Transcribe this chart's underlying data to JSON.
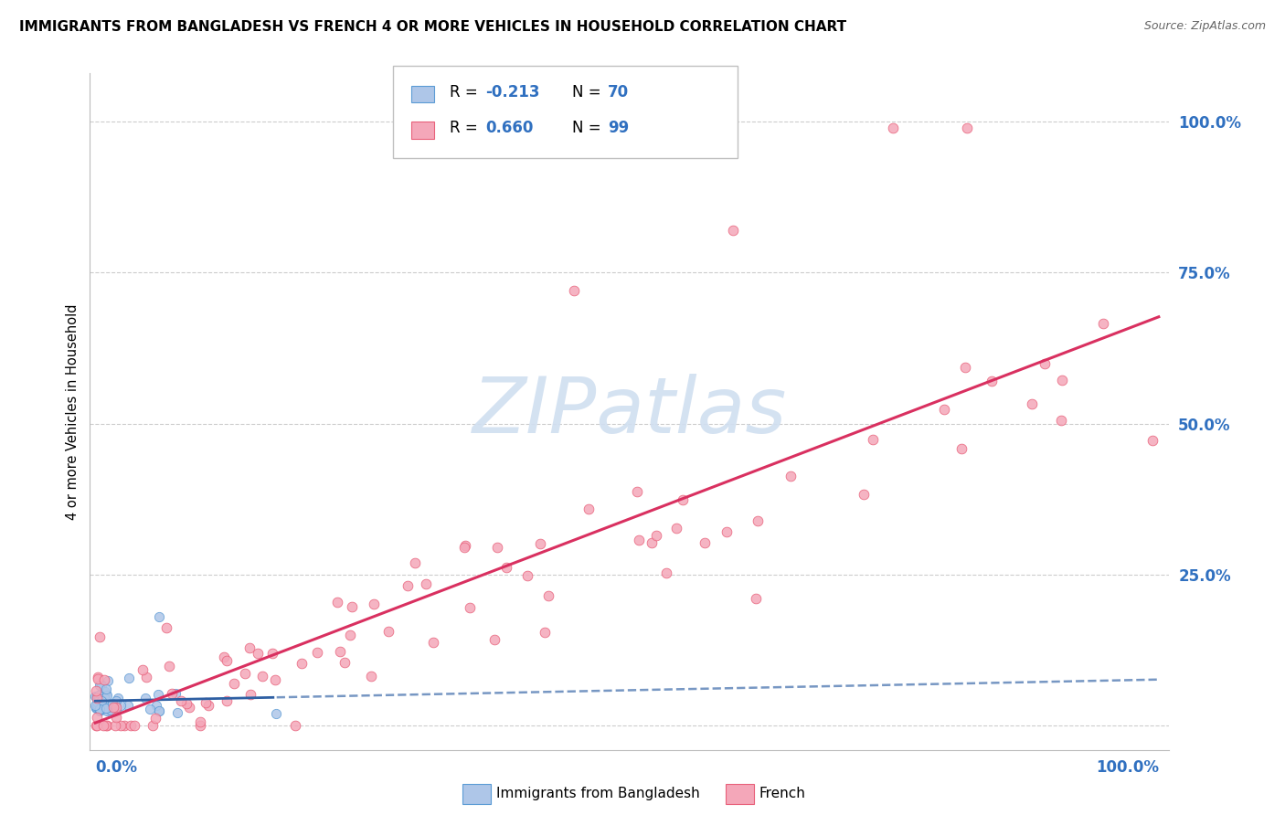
{
  "title": "IMMIGRANTS FROM BANGLADESH VS FRENCH 4 OR MORE VEHICLES IN HOUSEHOLD CORRELATION CHART",
  "source": "Source: ZipAtlas.com",
  "ylabel": "4 or more Vehicles in Household",
  "legend_label1": "Immigrants from Bangladesh",
  "legend_label2": "French",
  "color_blue_fill": "#aec6e8",
  "color_blue_edge": "#5b9bd5",
  "color_blue_line": "#2e5fa3",
  "color_pink_fill": "#f4a7b9",
  "color_pink_edge": "#e8607a",
  "color_pink_line": "#d93060",
  "color_axis_label": "#3070c0",
  "color_grid": "#cccccc",
  "watermark_color": "#d0dff0",
  "blue_R": -0.213,
  "blue_N": 70,
  "pink_R": 0.66,
  "pink_N": 99
}
